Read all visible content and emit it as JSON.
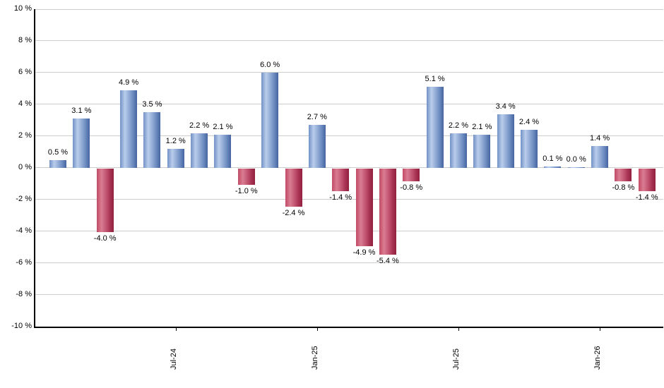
{
  "chart_data": {
    "type": "bar",
    "title": "",
    "xlabel": "",
    "ylabel": "",
    "ylim": [
      -10,
      10
    ],
    "grid": true,
    "legend_position": "none",
    "y_tick_labels": [
      "10 %",
      "8 %",
      "6 %",
      "4 %",
      "2 %",
      "0 %",
      "-2 %",
      "-4 %",
      "-6 %",
      "-8 %",
      "-10 %"
    ],
    "y_tick_values": [
      10,
      8,
      6,
      4,
      2,
      0,
      -2,
      -4,
      -6,
      -8,
      -10
    ],
    "x_tick_labels": [
      "Jul-24",
      "Jan-25",
      "Jul-25",
      "Jan-26"
    ],
    "x_tick_bar_indices": [
      5,
      11,
      17,
      23
    ],
    "values": [
      0.5,
      3.1,
      -4.0,
      4.9,
      3.5,
      1.2,
      2.2,
      2.1,
      -1.0,
      6.0,
      -2.4,
      2.7,
      -1.4,
      -4.9,
      -5.4,
      -0.8,
      5.1,
      2.2,
      2.1,
      3.4,
      2.4,
      0.1,
      0.0,
      1.4,
      -0.8,
      -1.4
    ],
    "bar_labels": [
      "0.5 %",
      "3.1 %",
      "-4.0 %",
      "4.9 %",
      "3.5 %",
      "1.2 %",
      "2.2 %",
      "2.1 %",
      "-1.0 %",
      "6.0 %",
      "-2.4 %",
      "2.7 %",
      "-1.4 %",
      "-4.9 %",
      "-5.4 %",
      "-0.8 %",
      "5.1 %",
      "2.2 %",
      "2.1 %",
      "3.4 %",
      "2.4 %",
      "0.1 %",
      "0.0 %",
      "1.4 %",
      "-0.8 %",
      "-1.4 %"
    ],
    "colors": {
      "positive_bar": "#6d8cc1",
      "negative_bar": "#b23a5c",
      "gridline": "#cccccc",
      "axis": "#000000",
      "label_text": "#000000",
      "background": "#ffffff"
    }
  }
}
